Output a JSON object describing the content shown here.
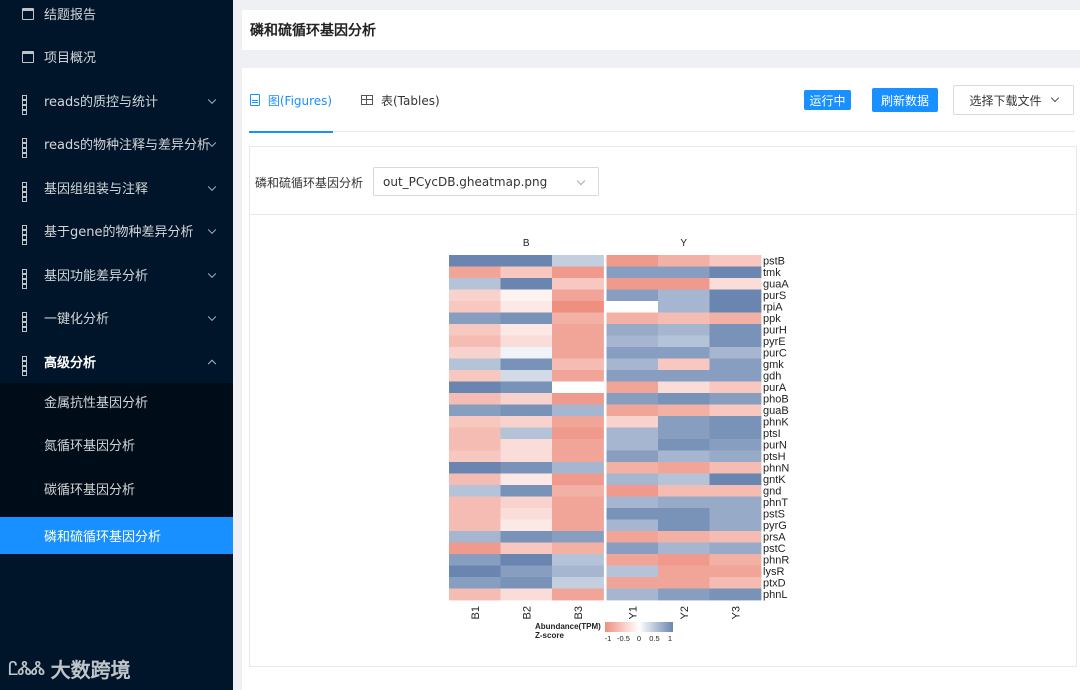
{
  "sidebar": {
    "items": [
      {
        "label": "结题报告",
        "icon": "calendar-icon"
      },
      {
        "label": "项目概况",
        "icon": "calendar-icon"
      },
      {
        "label": "reads的质控与统计",
        "icon": "grid-icon"
      },
      {
        "label": "reads的物种注释与差异分析",
        "icon": "grid-icon"
      },
      {
        "label": "基因组组装与注释",
        "icon": "grid-icon"
      },
      {
        "label": "基于gene的物种差异分析",
        "icon": "grid-icon"
      },
      {
        "label": "基因功能差异分析",
        "icon": "grid-icon"
      },
      {
        "label": "一键化分析",
        "icon": "grid-icon"
      },
      {
        "label": "高级分析",
        "icon": "grid-icon"
      }
    ],
    "submenu": [
      {
        "label": "金属抗性基因分析"
      },
      {
        "label": "氮循环基因分析"
      },
      {
        "label": "碳循环基因分析"
      },
      {
        "label": "磷和硫循环基因分析"
      }
    ],
    "logo_mark": "ᏝᏜᏜ",
    "logo_text": "大数跨境"
  },
  "header": {
    "title": "磷和硫循环基因分析"
  },
  "tabs": [
    {
      "label": "图(Figures)",
      "icon": "document-icon"
    },
    {
      "label": "表(Tables)",
      "icon": "table-icon"
    }
  ],
  "buttons": {
    "running": "运行中",
    "refresh": "刷新数据",
    "download": "选择下载文件"
  },
  "file_select": {
    "label": "磷和硫循环基因分析",
    "value": "out_PCycDB.gheatmap.png"
  },
  "colors": {
    "accent": "#1890ff",
    "sidebar_bg": "#001529",
    "heat_low": "#ee8f80",
    "heat_mid": "#ffffff",
    "heat_high": "#6a86b0"
  },
  "chart_data": {
    "type": "heatmap",
    "groups": [
      "B",
      "Y"
    ],
    "columns": [
      "B1",
      "B2",
      "B3",
      "Y1",
      "Y2",
      "Y3"
    ],
    "rows": [
      "pstB",
      "tmk",
      "guaA",
      "purS",
      "rpiA",
      "ppk",
      "purH",
      "pyrE",
      "purC",
      "gmk",
      "gdh",
      "purA",
      "phoB",
      "guaB",
      "phnK",
      "ptsI",
      "purN",
      "ptsH",
      "phnN",
      "gntK",
      "gnd",
      "phnT",
      "pstS",
      "pyrG",
      "prsA",
      "pstC",
      "phnR",
      "lysR",
      "ptxD",
      "phnL"
    ],
    "values": [
      [
        1,
        1,
        0.4,
        -0.9,
        -0.7,
        -0.5
      ],
      [
        -0.8,
        -0.5,
        -0.9,
        0.8,
        0.8,
        1
      ],
      [
        0.5,
        1,
        -0.5,
        -0.9,
        -0.9,
        -0.3
      ],
      [
        -0.4,
        -0.1,
        -0.8,
        0.8,
        0.6,
        1
      ],
      [
        -0.5,
        -0.2,
        -1,
        0,
        0.6,
        1
      ],
      [
        0.8,
        0.9,
        -0.7,
        -0.7,
        -0.6,
        -0.7
      ],
      [
        -0.5,
        -0.2,
        -0.8,
        0.7,
        0.6,
        0.9
      ],
      [
        -0.6,
        -0.3,
        -0.8,
        0.6,
        0.5,
        0.9
      ],
      [
        -0.4,
        0.1,
        -0.8,
        0.8,
        0.8,
        0.6
      ],
      [
        0.5,
        0.9,
        -0.6,
        0.6,
        -0.5,
        0.8
      ],
      [
        -0.5,
        0.3,
        -0.8,
        0.8,
        0.8,
        0.8
      ],
      [
        1,
        0.9,
        0,
        -0.8,
        -0.3,
        -0.5
      ],
      [
        -0.6,
        -0.4,
        -0.9,
        0.8,
        0.9,
        0.8
      ],
      [
        0.8,
        0.9,
        0.6,
        -0.8,
        -0.7,
        -0.5
      ],
      [
        -0.5,
        -0.4,
        -0.8,
        -0.4,
        0.8,
        0.9
      ],
      [
        -0.6,
        0.5,
        -0.9,
        0.6,
        0.8,
        0.9
      ],
      [
        -0.6,
        -0.3,
        -0.8,
        0.6,
        0.9,
        0.8
      ],
      [
        -0.5,
        -0.3,
        -0.8,
        0.8,
        0.6,
        0.7
      ],
      [
        1,
        0.9,
        0.6,
        -0.7,
        -0.8,
        -0.6
      ],
      [
        -0.6,
        -0.2,
        -0.9,
        0.6,
        0.5,
        1
      ],
      [
        0.5,
        0.9,
        -0.7,
        -0.9,
        -0.6,
        -0.6
      ],
      [
        -0.6,
        -0.4,
        -0.8,
        0.6,
        0.7,
        0.7
      ],
      [
        -0.6,
        -0.3,
        -0.8,
        0.9,
        0.9,
        0.7
      ],
      [
        -0.6,
        -0.2,
        -0.8,
        0.6,
        0.9,
        0.7
      ],
      [
        0.6,
        0.9,
        0.8,
        -0.8,
        -0.7,
        -0.6
      ],
      [
        -0.9,
        -0.5,
        -0.7,
        0.8,
        0.6,
        0.7
      ],
      [
        0.8,
        1,
        0.5,
        -0.8,
        -0.9,
        -0.7
      ],
      [
        1,
        0.8,
        0.6,
        0.5,
        -0.8,
        -0.8
      ],
      [
        0.8,
        0.9,
        0.4,
        -0.8,
        -0.8,
        -0.6
      ],
      [
        -0.6,
        -0.3,
        -0.8,
        0.6,
        0.8,
        0.9
      ]
    ],
    "legend": {
      "title": "Abundance(TPM)",
      "subtitle": "Z-score",
      "ticks": [
        "-1",
        "-0.5",
        "0",
        "0.5",
        "1"
      ]
    }
  }
}
